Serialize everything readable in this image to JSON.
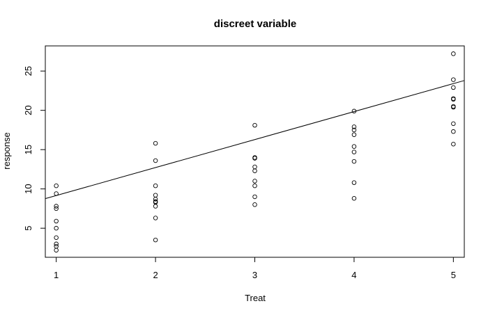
{
  "chart_data": {
    "type": "scatter",
    "title": "discreet variable",
    "xlabel": "Treat",
    "ylabel": "response",
    "xlim": [
      0.89,
      5.11
    ],
    "ylim": [
      1.3,
      28.2
    ],
    "xticks": [
      "1",
      "2",
      "3",
      "4",
      "5"
    ],
    "yticks": [
      "5",
      "10",
      "15",
      "20",
      "25"
    ],
    "grid": false,
    "legend": "none",
    "points": [
      {
        "x": 1,
        "y": 10.4
      },
      {
        "x": 1,
        "y": 9.4
      },
      {
        "x": 1,
        "y": 7.8
      },
      {
        "x": 1,
        "y": 7.5
      },
      {
        "x": 1,
        "y": 5.9
      },
      {
        "x": 1,
        "y": 5.0
      },
      {
        "x": 1,
        "y": 3.8
      },
      {
        "x": 1,
        "y": 3.0
      },
      {
        "x": 1,
        "y": 2.7
      },
      {
        "x": 1,
        "y": 2.2
      },
      {
        "x": 2,
        "y": 15.8
      },
      {
        "x": 2,
        "y": 13.6
      },
      {
        "x": 2,
        "y": 10.4
      },
      {
        "x": 2,
        "y": 9.2
      },
      {
        "x": 2,
        "y": 8.7
      },
      {
        "x": 2,
        "y": 8.4
      },
      {
        "x": 2,
        "y": 8.3
      },
      {
        "x": 2,
        "y": 7.8
      },
      {
        "x": 2,
        "y": 6.3
      },
      {
        "x": 2,
        "y": 3.5
      },
      {
        "x": 3,
        "y": 18.1
      },
      {
        "x": 3,
        "y": 14.0
      },
      {
        "x": 3,
        "y": 13.9
      },
      {
        "x": 3,
        "y": 12.8
      },
      {
        "x": 3,
        "y": 12.3
      },
      {
        "x": 3,
        "y": 11.0
      },
      {
        "x": 3,
        "y": 10.4
      },
      {
        "x": 3,
        "y": 9.0
      },
      {
        "x": 3,
        "y": 8.0
      },
      {
        "x": 4,
        "y": 19.9
      },
      {
        "x": 4,
        "y": 17.9
      },
      {
        "x": 4,
        "y": 17.5
      },
      {
        "x": 4,
        "y": 16.9
      },
      {
        "x": 4,
        "y": 15.4
      },
      {
        "x": 4,
        "y": 14.7
      },
      {
        "x": 4,
        "y": 13.5
      },
      {
        "x": 4,
        "y": 10.8
      },
      {
        "x": 4,
        "y": 8.8
      },
      {
        "x": 5,
        "y": 27.2
      },
      {
        "x": 5,
        "y": 23.9
      },
      {
        "x": 5,
        "y": 22.9
      },
      {
        "x": 5,
        "y": 21.5
      },
      {
        "x": 5,
        "y": 21.4
      },
      {
        "x": 5,
        "y": 20.5
      },
      {
        "x": 5,
        "y": 20.4
      },
      {
        "x": 5,
        "y": 18.3
      },
      {
        "x": 5,
        "y": 17.3
      },
      {
        "x": 5,
        "y": 15.7
      }
    ],
    "fit_line": {
      "intercept": 5.6,
      "slope": 3.56
    }
  }
}
